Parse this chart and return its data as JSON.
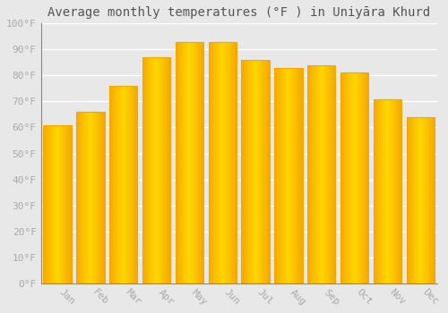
{
  "title": "Average monthly temperatures (°F ) in Uniyāra Khurd",
  "months": [
    "Jan",
    "Feb",
    "Mar",
    "Apr",
    "May",
    "Jun",
    "Jul",
    "Aug",
    "Sep",
    "Oct",
    "Nov",
    "Dec"
  ],
  "values": [
    61,
    66,
    76,
    87,
    93,
    93,
    86,
    83,
    84,
    81,
    71,
    64
  ],
  "bar_color_center": "#FFD700",
  "bar_color_edge": "#F5A800",
  "background_color": "#e8e8e8",
  "grid_color": "#ffffff",
  "ylim": [
    0,
    100
  ],
  "yticks": [
    0,
    10,
    20,
    30,
    40,
    50,
    60,
    70,
    80,
    90,
    100
  ],
  "ytick_labels": [
    "0°F",
    "10°F",
    "20°F",
    "30°F",
    "40°F",
    "50°F",
    "60°F",
    "70°F",
    "80°F",
    "90°F",
    "100°F"
  ],
  "title_fontsize": 10,
  "tick_fontsize": 8,
  "font_family": "monospace",
  "tick_color": "#aaaaaa",
  "title_color": "#555555",
  "bar_width": 0.85,
  "xtick_rotation": -45,
  "xtick_ha": "left"
}
